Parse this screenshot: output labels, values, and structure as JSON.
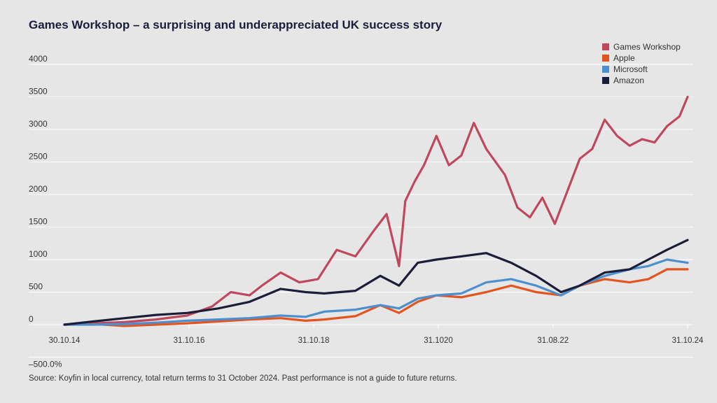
{
  "chart_data": {
    "type": "line",
    "title": "Games Workshop – a surprising and underappreciated UK success story",
    "source": "Source: Koyfin in local currency, total return terms to 31 October 2024. Past performance is not a guide to future returns.",
    "ylim": [
      0,
      4000
    ],
    "y_ticks": [
      0,
      500,
      1000,
      1500,
      2000,
      2500,
      3000,
      3500,
      4000
    ],
    "y_tick_labels": [
      "0",
      "500",
      "1000",
      "1500",
      "2000",
      "2500",
      "3000",
      "3500",
      "4000"
    ],
    "y_extra_label": "–500.0%",
    "y_extra_value": -500,
    "x_tick_labels": [
      "30.10.14",
      "31.10.16",
      "31.10.18",
      "31.1020",
      "31.08.22",
      "31.10.24"
    ],
    "x_tick_positions": [
      2014.83,
      2016.83,
      2018.83,
      2020.83,
      2022.67,
      2024.83
    ],
    "xlim": [
      2014.83,
      2024.83
    ],
    "grid": true,
    "legend_position": "top-right",
    "series": [
      {
        "name": "Games Workshop",
        "color": "#c0485d",
        "x": [
          2014.83,
          2015.3,
          2015.8,
          2016.3,
          2016.8,
          2017.2,
          2017.5,
          2017.8,
          2018.0,
          2018.3,
          2018.6,
          2018.9,
          2019.2,
          2019.5,
          2019.8,
          2020.0,
          2020.2,
          2020.3,
          2020.45,
          2020.6,
          2020.8,
          2021.0,
          2021.2,
          2021.4,
          2021.6,
          2021.9,
          2022.1,
          2022.3,
          2022.5,
          2022.7,
          2022.9,
          2023.1,
          2023.3,
          2023.5,
          2023.7,
          2023.9,
          2024.1,
          2024.3,
          2024.5,
          2024.7,
          2024.83
        ],
        "y": [
          0,
          20,
          40,
          80,
          140,
          280,
          500,
          450,
          600,
          800,
          650,
          700,
          1150,
          1050,
          1450,
          1700,
          900,
          1900,
          2200,
          2450,
          2900,
          2450,
          2600,
          3100,
          2700,
          2300,
          1800,
          1650,
          1950,
          1550,
          2050,
          2550,
          2700,
          3150,
          2900,
          2750,
          2850,
          2800,
          3050,
          3200,
          3500
        ]
      },
      {
        "name": "Apple",
        "color": "#e3541f",
        "x": [
          2014.83,
          2015.3,
          2015.8,
          2016.3,
          2016.8,
          2017.3,
          2017.8,
          2018.3,
          2018.7,
          2019.0,
          2019.5,
          2019.9,
          2020.2,
          2020.5,
          2020.8,
          2021.2,
          2021.6,
          2022.0,
          2022.4,
          2022.8,
          2023.1,
          2023.5,
          2023.9,
          2024.2,
          2024.5,
          2024.83
        ],
        "y": [
          0,
          10,
          -20,
          0,
          20,
          50,
          80,
          100,
          60,
          80,
          130,
          300,
          180,
          350,
          450,
          420,
          500,
          600,
          500,
          450,
          600,
          700,
          650,
          700,
          850,
          850
        ]
      },
      {
        "name": "Microsoft",
        "color": "#4c8fcf",
        "x": [
          2014.83,
          2015.3,
          2015.8,
          2016.3,
          2016.8,
          2017.3,
          2017.8,
          2018.3,
          2018.7,
          2019.0,
          2019.5,
          2019.9,
          2020.2,
          2020.5,
          2020.8,
          2021.2,
          2021.6,
          2022.0,
          2022.4,
          2022.8,
          2023.1,
          2023.5,
          2023.9,
          2024.2,
          2024.5,
          2024.83
        ],
        "y": [
          0,
          0,
          10,
          30,
          60,
          80,
          100,
          140,
          120,
          200,
          230,
          300,
          250,
          400,
          450,
          480,
          650,
          700,
          600,
          450,
          600,
          750,
          850,
          900,
          1000,
          950
        ]
      },
      {
        "name": "Amazon",
        "color": "#1b1d3a",
        "x": [
          2014.83,
          2015.3,
          2015.8,
          2016.3,
          2016.8,
          2017.3,
          2017.8,
          2018.3,
          2018.7,
          2019.0,
          2019.5,
          2019.9,
          2020.2,
          2020.5,
          2020.8,
          2021.2,
          2021.6,
          2022.0,
          2022.4,
          2022.8,
          2023.1,
          2023.5,
          2023.9,
          2024.2,
          2024.5,
          2024.83
        ],
        "y": [
          0,
          50,
          100,
          150,
          180,
          250,
          350,
          550,
          500,
          480,
          520,
          750,
          600,
          950,
          1000,
          1050,
          1100,
          950,
          750,
          500,
          600,
          800,
          850,
          1000,
          1150,
          1300
        ]
      }
    ]
  }
}
